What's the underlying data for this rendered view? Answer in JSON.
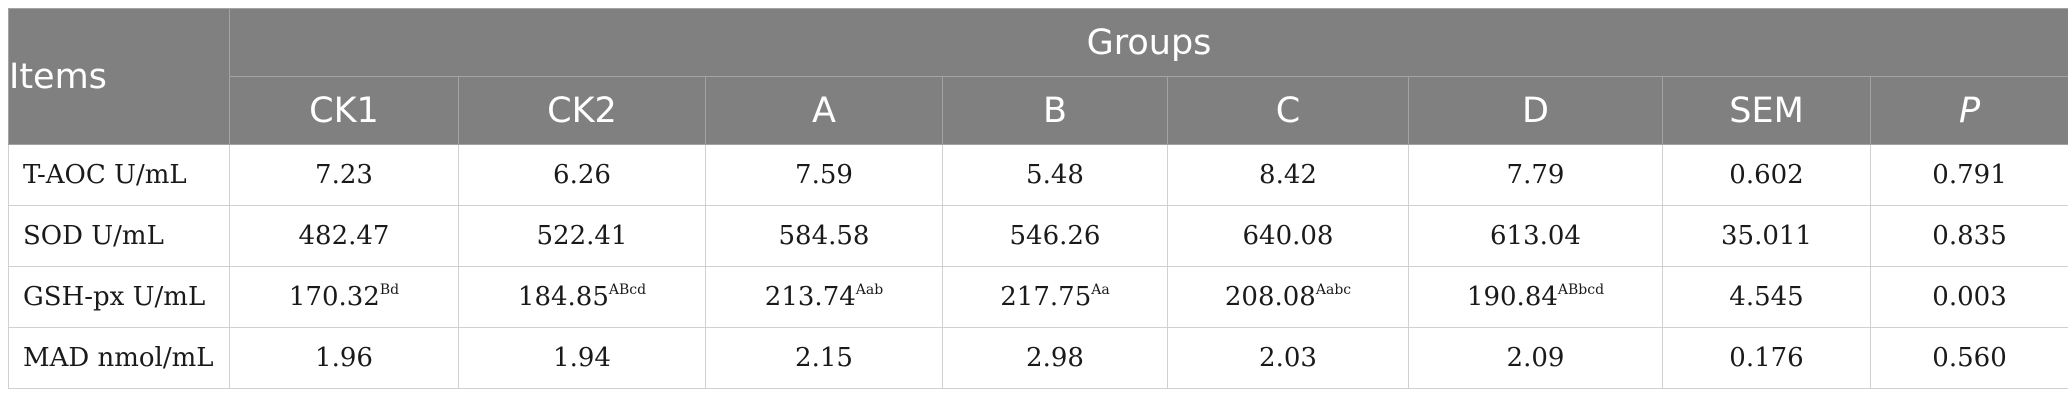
{
  "header": {
    "items_label": "Items",
    "groups_label": "Groups",
    "columns": [
      "CK1",
      "CK2",
      "A",
      "B",
      "C",
      "D",
      "SEM",
      "P"
    ]
  },
  "rows": [
    {
      "label": "T-AOC U/mL",
      "cells": [
        {
          "value": "7.23",
          "sup": ""
        },
        {
          "value": "6.26",
          "sup": ""
        },
        {
          "value": "7.59",
          "sup": ""
        },
        {
          "value": "5.48",
          "sup": ""
        },
        {
          "value": "8.42",
          "sup": ""
        },
        {
          "value": "7.79",
          "sup": ""
        },
        {
          "value": "0.602",
          "sup": ""
        },
        {
          "value": "0.791",
          "sup": ""
        }
      ]
    },
    {
      "label": "SOD U/mL",
      "cells": [
        {
          "value": "482.47",
          "sup": ""
        },
        {
          "value": "522.41",
          "sup": ""
        },
        {
          "value": "584.58",
          "sup": ""
        },
        {
          "value": "546.26",
          "sup": ""
        },
        {
          "value": "640.08",
          "sup": ""
        },
        {
          "value": "613.04",
          "sup": ""
        },
        {
          "value": "35.011",
          "sup": ""
        },
        {
          "value": "0.835",
          "sup": ""
        }
      ]
    },
    {
      "label": "GSH-px U/mL",
      "cells": [
        {
          "value": "170.32",
          "sup": "Bd"
        },
        {
          "value": "184.85",
          "sup": "ABcd"
        },
        {
          "value": "213.74",
          "sup": "Aab"
        },
        {
          "value": "217.75",
          "sup": "Aa"
        },
        {
          "value": "208.08",
          "sup": "Aabc"
        },
        {
          "value": "190.84",
          "sup": "ABbcd"
        },
        {
          "value": "4.545",
          "sup": ""
        },
        {
          "value": "0.003",
          "sup": ""
        }
      ]
    },
    {
      "label": "MAD nmol/mL",
      "cells": [
        {
          "value": "1.96",
          "sup": ""
        },
        {
          "value": "1.94",
          "sup": ""
        },
        {
          "value": "2.15",
          "sup": ""
        },
        {
          "value": "2.98",
          "sup": ""
        },
        {
          "value": "2.03",
          "sup": ""
        },
        {
          "value": "2.09",
          "sup": ""
        },
        {
          "value": "0.176",
          "sup": ""
        },
        {
          "value": "0.560",
          "sup": ""
        }
      ]
    }
  ]
}
